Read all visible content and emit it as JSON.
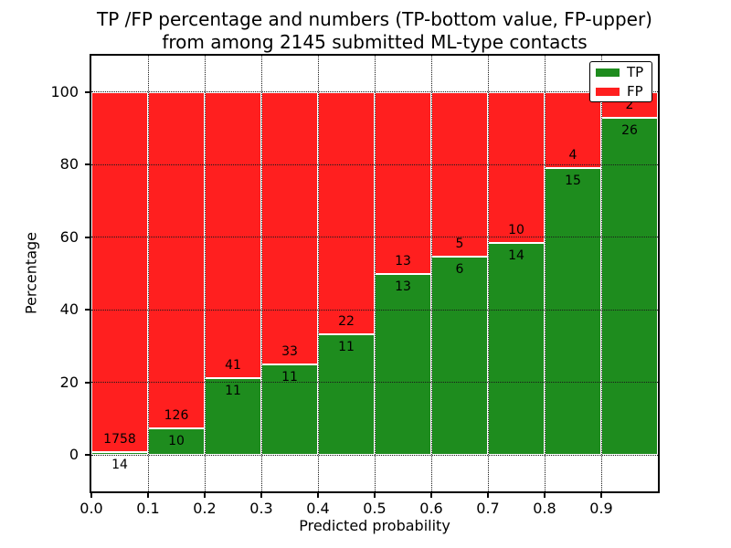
{
  "figure": {
    "title_line1": "TP /FP percentage and numbers (TP-bottom value, FP-upper)",
    "title_line2": "from among 2145 submitted ML-type contacts"
  },
  "chart_data": {
    "type": "bar",
    "stacked": true,
    "orientation": "vertical",
    "title": "TP /FP percentage and numbers (TP-bottom value, FP-upper) from among 2145 submitted ML-type contacts",
    "xlabel": "Predicted probability",
    "ylabel": "Percentage",
    "xlim": [
      0.0,
      1.0
    ],
    "ylim": [
      -10,
      110
    ],
    "grid": true,
    "grid_style": "dotted",
    "bin_width": 0.1,
    "x_ticks": [
      0.0,
      0.1,
      0.2,
      0.3,
      0.4,
      0.5,
      0.6,
      0.7,
      0.8,
      0.9
    ],
    "x_tick_labels": [
      "0.0",
      "0.1",
      "0.2",
      "0.3",
      "0.4",
      "0.5",
      "0.6",
      "0.7",
      "0.8",
      "0.9"
    ],
    "y_ticks": [
      0,
      20,
      40,
      60,
      80,
      100
    ],
    "bins": [
      {
        "range": "0.0-0.1",
        "tp": 14,
        "fp": 1758
      },
      {
        "range": "0.1-0.2",
        "tp": 10,
        "fp": 126
      },
      {
        "range": "0.2-0.3",
        "tp": 11,
        "fp": 41
      },
      {
        "range": "0.3-0.4",
        "tp": 11,
        "fp": 33
      },
      {
        "range": "0.4-0.5",
        "tp": 11,
        "fp": 22
      },
      {
        "range": "0.5-0.6",
        "tp": 13,
        "fp": 13
      },
      {
        "range": "0.6-0.7",
        "tp": 6,
        "fp": 5
      },
      {
        "range": "0.7-0.8",
        "tp": 14,
        "fp": 10
      },
      {
        "range": "0.8-0.9",
        "tp": 15,
        "fp": 4
      },
      {
        "range": "0.9-1.0",
        "tp": 26,
        "fp": 2
      }
    ],
    "series": [
      {
        "name": "TP",
        "color": "#1e8c1e"
      },
      {
        "name": "FP",
        "color": "#ff1f1f"
      }
    ],
    "legend": {
      "position": "upper right",
      "entries": [
        {
          "label": "TP",
          "color": "#1e8c1e"
        },
        {
          "label": "FP",
          "color": "#ff1f1f"
        }
      ]
    },
    "total_contacts": 2145
  }
}
